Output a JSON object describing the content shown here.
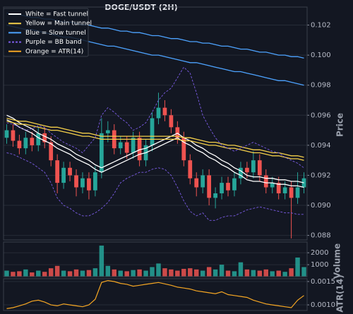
{
  "chart_data": [
    {
      "type": "candlestick",
      "title": "DOGE/USDT (2H)",
      "y_label": "Price",
      "up_color": "#26a69a",
      "down_color": "#ef5350",
      "grid": true,
      "ylim": [
        0.0877,
        0.1032
      ],
      "yticks": [
        0.088,
        {
          "value": 0.09,
          "label": "0.090"
        },
        0.092,
        0.094,
        0.096,
        0.098,
        {
          "value": 0.1,
          "label": "0.100"
        },
        0.102
      ],
      "open": [
        0.0945,
        0.095,
        0.0943,
        0.0938,
        0.0945,
        0.094,
        0.0948,
        0.0942,
        0.093,
        0.0915,
        0.0925,
        0.092,
        0.0912,
        0.0918,
        0.091,
        0.0922,
        0.0948,
        0.095,
        0.0938,
        0.0942,
        0.0935,
        0.0945,
        0.093,
        0.094,
        0.0958,
        0.0965,
        0.096,
        0.0952,
        0.0945,
        0.093,
        0.0918,
        0.0912,
        0.092,
        0.0905,
        0.0908,
        0.0915,
        0.091,
        0.0918,
        0.0925,
        0.0922,
        0.093,
        0.092,
        0.0912,
        0.0915,
        0.0908,
        0.0912,
        0.0905,
        0.0912
      ],
      "high": [
        0.0954,
        0.0954,
        0.0947,
        0.0949,
        0.0949,
        0.0952,
        0.0952,
        0.0946,
        0.0934,
        0.0929,
        0.0929,
        0.0924,
        0.0922,
        0.0922,
        0.0926,
        0.0958,
        0.0956,
        0.0954,
        0.0946,
        0.0946,
        0.0949,
        0.0949,
        0.0944,
        0.0962,
        0.0975,
        0.097,
        0.0964,
        0.0956,
        0.0949,
        0.0934,
        0.0922,
        0.0924,
        0.0924,
        0.0912,
        0.0919,
        0.0919,
        0.0922,
        0.0929,
        0.0929,
        0.0936,
        0.0934,
        0.0924,
        0.0919,
        0.0919,
        0.0916,
        0.0916,
        0.0922,
        0.0922
      ],
      "low": [
        0.0941,
        0.0939,
        0.0934,
        0.0934,
        0.0936,
        0.0936,
        0.0938,
        0.0926,
        0.0908,
        0.0911,
        0.0916,
        0.0906,
        0.0908,
        0.0904,
        0.0906,
        0.0918,
        0.0942,
        0.0934,
        0.0934,
        0.0931,
        0.0931,
        0.0926,
        0.0926,
        0.0936,
        0.0954,
        0.0956,
        0.0948,
        0.0941,
        0.0926,
        0.0914,
        0.0906,
        0.0908,
        0.09,
        0.0898,
        0.0904,
        0.0906,
        0.0906,
        0.0914,
        0.0918,
        0.0918,
        0.0916,
        0.0908,
        0.0908,
        0.0904,
        0.0904,
        0.0878,
        0.0901,
        0.0908
      ],
      "close": [
        0.095,
        0.0943,
        0.0938,
        0.0945,
        0.094,
        0.0948,
        0.0942,
        0.093,
        0.0915,
        0.0925,
        0.092,
        0.0912,
        0.0918,
        0.091,
        0.0922,
        0.0948,
        0.095,
        0.0938,
        0.0942,
        0.0935,
        0.0945,
        0.093,
        0.094,
        0.0958,
        0.0965,
        0.096,
        0.0952,
        0.0945,
        0.093,
        0.0918,
        0.0912,
        0.092,
        0.0905,
        0.0908,
        0.0915,
        0.091,
        0.0918,
        0.0925,
        0.0922,
        0.093,
        0.092,
        0.0912,
        0.0915,
        0.0908,
        0.0912,
        0.0905,
        0.0912,
        0.0918
      ],
      "series": [
        {
          "name": "White = Fast tunnel",
          "color": "#ffffff",
          "values": [
            0.096,
            0.0958,
            0.0955,
            0.0953,
            0.0951,
            0.0948,
            0.0946,
            0.0944,
            0.0941,
            0.0939,
            0.0937,
            0.0934,
            0.0932,
            0.093,
            0.0927,
            0.0925,
            0.0927,
            0.0929,
            0.0931,
            0.0933,
            0.0935,
            0.0937,
            0.0938,
            0.094,
            0.0942,
            0.0944,
            0.0946,
            0.0948,
            0.0945,
            0.0943,
            0.094,
            0.0938,
            0.0935,
            0.0933,
            0.093,
            0.0928,
            0.0925,
            0.0923,
            0.092,
            0.0919,
            0.0919,
            0.0918,
            0.0918,
            0.0917,
            0.0917,
            0.0916,
            0.0916,
            0.0915
          ],
          "lower": [
            0.0957,
            0.0955,
            0.0952,
            0.095,
            0.0948,
            0.0945,
            0.0943,
            0.0941,
            0.0938,
            0.0936,
            0.0934,
            0.0931,
            0.0929,
            0.0927,
            0.0924,
            0.0922,
            0.0924,
            0.0926,
            0.0928,
            0.093,
            0.0932,
            0.0934,
            0.0935,
            0.0937,
            0.0939,
            0.0941,
            0.0943,
            0.0945,
            0.0942,
            0.094,
            0.0937,
            0.0935,
            0.0932,
            0.093,
            0.0927,
            0.0925,
            0.0922,
            0.092,
            0.0917,
            0.0916,
            0.0916,
            0.0915,
            0.0915,
            0.0914,
            0.0914,
            0.0913,
            0.0913,
            0.0912
          ]
        },
        {
          "name": "Yellow = Main tunnel",
          "color": "#f5d04a",
          "values": [
            0.0958,
            0.0957,
            0.0956,
            0.0956,
            0.0955,
            0.0954,
            0.0953,
            0.0952,
            0.0952,
            0.0951,
            0.095,
            0.0949,
            0.0948,
            0.0948,
            0.0947,
            0.0946,
            0.0946,
            0.0946,
            0.0946,
            0.0946,
            0.0946,
            0.0946,
            0.0946,
            0.0946,
            0.0946,
            0.0946,
            0.0946,
            0.0946,
            0.0945,
            0.0945,
            0.0944,
            0.0943,
            0.0942,
            0.0942,
            0.0941,
            0.094,
            0.094,
            0.0939,
            0.0938,
            0.0937,
            0.0937,
            0.0936,
            0.0935,
            0.0935,
            0.0934,
            0.0933,
            0.0933,
            0.0932
          ],
          "lower": [
            0.0956,
            0.0955,
            0.0954,
            0.0954,
            0.0953,
            0.0952,
            0.0951,
            0.095,
            0.095,
            0.0949,
            0.0948,
            0.0947,
            0.0946,
            0.0946,
            0.0945,
            0.0944,
            0.0944,
            0.0944,
            0.0944,
            0.0944,
            0.0944,
            0.0944,
            0.0944,
            0.0944,
            0.0944,
            0.0944,
            0.0944,
            0.0944,
            0.0943,
            0.0943,
            0.0942,
            0.0941,
            0.094,
            0.094,
            0.0939,
            0.0938,
            0.0938,
            0.0937,
            0.0936,
            0.0935,
            0.0935,
            0.0934,
            0.0933,
            0.0933,
            0.0932,
            0.0931,
            0.0931,
            0.093
          ]
        },
        {
          "name": "Blue = Slow tunnel",
          "color": "#4da3ff",
          "values": [
            0.1028,
            0.1027,
            0.1027,
            0.1026,
            0.1025,
            0.1025,
            0.1024,
            0.1024,
            0.1023,
            0.1022,
            0.1022,
            0.1021,
            0.102,
            0.102,
            0.1019,
            0.1018,
            0.1018,
            0.1017,
            0.1016,
            0.1016,
            0.1015,
            0.1015,
            0.1014,
            0.1013,
            0.1013,
            0.1012,
            0.1011,
            0.1011,
            0.101,
            0.1009,
            0.1009,
            0.1008,
            0.1008,
            0.1007,
            0.1006,
            0.1006,
            0.1005,
            0.1004,
            0.1004,
            0.1003,
            0.1002,
            0.1002,
            0.1001,
            0.1,
            0.1,
            0.0999,
            0.0999,
            0.0998
          ],
          "lower": [
            0.102,
            0.1019,
            0.1018,
            0.1017,
            0.1017,
            0.1016,
            0.1015,
            0.1014,
            0.1013,
            0.1012,
            0.1012,
            0.1011,
            0.101,
            0.1009,
            0.1008,
            0.1007,
            0.1006,
            0.1006,
            0.1005,
            0.1004,
            0.1003,
            0.1002,
            0.1001,
            0.1,
            0.1,
            0.0999,
            0.0998,
            0.0997,
            0.0996,
            0.0995,
            0.0995,
            0.0994,
            0.0993,
            0.0992,
            0.0991,
            0.099,
            0.0989,
            0.0989,
            0.0988,
            0.0987,
            0.0986,
            0.0985,
            0.0984,
            0.0983,
            0.0983,
            0.0982,
            0.0981,
            0.098
          ]
        },
        {
          "name": "Purple = BB band",
          "color": "#7b5ce6",
          "dashed": true,
          "values": [
            0.0955,
            0.0954,
            0.0952,
            0.095,
            0.0951,
            0.0953,
            0.0952,
            0.0948,
            0.0945,
            0.0942,
            0.094,
            0.0938,
            0.0935,
            0.094,
            0.0945,
            0.096,
            0.0965,
            0.0962,
            0.0958,
            0.0955,
            0.095,
            0.0952,
            0.0955,
            0.0962,
            0.097,
            0.0975,
            0.0978,
            0.0985,
            0.0992,
            0.0988,
            0.0975,
            0.096,
            0.0952,
            0.0945,
            0.094,
            0.0938,
            0.0936,
            0.0938,
            0.094,
            0.0942,
            0.094,
            0.0938,
            0.0936,
            0.0935,
            0.0932,
            0.093,
            0.0928,
            0.0925
          ],
          "lower": [
            0.0935,
            0.0934,
            0.0932,
            0.093,
            0.0928,
            0.0925,
            0.0922,
            0.0915,
            0.0905,
            0.09,
            0.0898,
            0.0895,
            0.0893,
            0.0893,
            0.0895,
            0.0898,
            0.0902,
            0.0908,
            0.0915,
            0.0918,
            0.092,
            0.0922,
            0.0922,
            0.0924,
            0.0925,
            0.0924,
            0.092,
            0.0912,
            0.0903,
            0.0896,
            0.0893,
            0.0895,
            0.089,
            0.089,
            0.0892,
            0.0893,
            0.0893,
            0.0895,
            0.0897,
            0.0898,
            0.0899,
            0.0898,
            0.0897,
            0.0896,
            0.0895,
            0.0895,
            0.0894,
            0.0894
          ]
        }
      ]
    },
    {
      "type": "bar",
      "y_label": "Volume",
      "ylim": [
        0,
        2900
      ],
      "yticks": [
        1000,
        2000
      ],
      "values": [
        500,
        400,
        450,
        600,
        350,
        500,
        400,
        700,
        900,
        500,
        450,
        600,
        500,
        550,
        700,
        2600,
        900,
        600,
        500,
        450,
        550,
        600,
        500,
        800,
        1100,
        700,
        600,
        500,
        650,
        700,
        600,
        500,
        800,
        600,
        1000,
        500,
        450,
        1200,
        600,
        550,
        500,
        600,
        450,
        500,
        400,
        700,
        1600,
        800
      ]
    },
    {
      "type": "line",
      "y_label": "ATR(14)",
      "ylim": [
        0.00088,
        0.00156
      ],
      "yticks": [
        {
          "value": 0.001,
          "label": "0.0010"
        },
        0.0015
      ],
      "series": [
        {
          "name": "Orange = ATR(14)",
          "color": "#f5a623",
          "values": [
            0.00092,
            0.00094,
            0.00098,
            0.00102,
            0.00108,
            0.0011,
            0.00106,
            0.001,
            0.00098,
            0.00102,
            0.001,
            0.00098,
            0.00096,
            0.001,
            0.00112,
            0.00148,
            0.00152,
            0.0015,
            0.00146,
            0.00144,
            0.0014,
            0.00142,
            0.00144,
            0.00146,
            0.00148,
            0.00145,
            0.00142,
            0.00138,
            0.00136,
            0.00134,
            0.0013,
            0.00128,
            0.00126,
            0.00124,
            0.00128,
            0.00122,
            0.0012,
            0.00118,
            0.00116,
            0.0011,
            0.00106,
            0.00102,
            0.001,
            0.00098,
            0.00096,
            0.00094,
            0.0011,
            0.0012
          ]
        }
      ]
    }
  ]
}
